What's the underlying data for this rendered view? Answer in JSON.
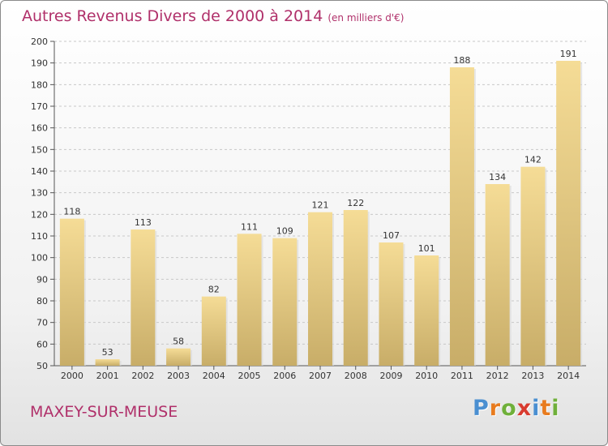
{
  "chart_data": {
    "type": "bar",
    "title": "Autres Revenus Divers de 2000 à 2014",
    "unit_note": "(en milliers d'€)",
    "categories": [
      "2000",
      "2001",
      "2002",
      "2003",
      "2004",
      "2005",
      "2006",
      "2007",
      "2008",
      "2009",
      "2010",
      "2011",
      "2012",
      "2013",
      "2014"
    ],
    "values": [
      118,
      53,
      113,
      58,
      82,
      111,
      109,
      121,
      122,
      107,
      101,
      188,
      134,
      142,
      191
    ],
    "ylim": [
      50,
      200
    ],
    "yticks": [
      50,
      60,
      70,
      80,
      90,
      100,
      110,
      120,
      130,
      140,
      150,
      160,
      170,
      180,
      190,
      200
    ],
    "grid": "horizontal, dashed",
    "bar_color": "#e6cc85"
  },
  "footer": {
    "place": "MAXEY-SUR-MEUSE",
    "logo": [
      "P",
      "r",
      "o",
      "x",
      "i",
      "t",
      "i"
    ],
    "logo_colors": [
      "#4a8fd1",
      "#e87b1e",
      "#6fb03a",
      "#d83b2f",
      "#4a8fd1",
      "#e87b1e",
      "#6fb03a"
    ]
  }
}
